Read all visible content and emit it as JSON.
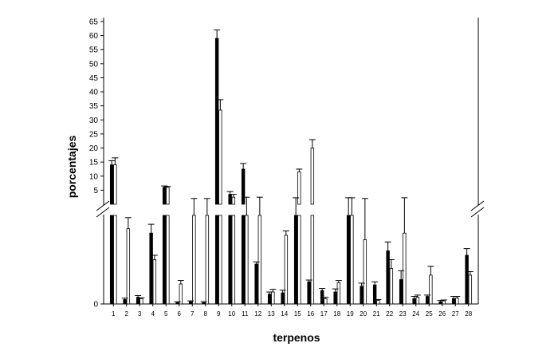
{
  "chart_data": {
    "type": "bar",
    "xlabel": "terpenos",
    "ylabel": "porcentajes",
    "y_ticks_upper": [
      "5",
      "10",
      "15",
      "20",
      "25",
      "30",
      "35",
      "40",
      "45",
      "50",
      "55",
      "60",
      "65"
    ],
    "y_tick_lower": "0",
    "ylim": [
      0,
      65
    ],
    "axis_break": true,
    "grid": false,
    "legend": "none",
    "categories": [
      "1",
      "2",
      "3",
      "4",
      "5",
      "6",
      "7",
      "8",
      "9",
      "10",
      "11",
      "12",
      "13",
      "14",
      "15",
      "16",
      "17",
      "18",
      "19",
      "20",
      "21",
      "22",
      "23",
      "24",
      "25",
      "26",
      "27",
      "28"
    ],
    "series": [
      {
        "color": "#000000",
        "values": [
          14.0,
          0.1,
          0.15,
          1.6,
          6.0,
          0.03,
          0.05,
          0.03,
          59.0,
          3.5,
          12.5,
          0.9,
          0.22,
          0.25,
          2.0,
          0.5,
          0.3,
          0.27,
          2.0,
          0.4,
          0.43,
          1.2,
          0.55,
          0.12,
          0.17,
          0.05,
          0.12,
          1.1
        ],
        "errors": [
          1.5,
          0.03,
          0.04,
          0.2,
          0.5,
          0.02,
          0.02,
          0.02,
          3.0,
          1.0,
          2.0,
          0.05,
          0.05,
          0.06,
          0.3,
          0.04,
          0.05,
          0.07,
          0.3,
          0.07,
          0.07,
          0.2,
          0.2,
          0.05,
          0.03,
          0.03,
          0.05,
          0.15
        ]
      },
      {
        "color": "#ffffff",
        "values": [
          14.0,
          1.7,
          0.12,
          1.0,
          6.0,
          0.45,
          2.0,
          2.0,
          33.5,
          2.5,
          2.0,
          2.0,
          0.27,
          1.55,
          11.5,
          20.0,
          0.12,
          0.48,
          2.0,
          1.45,
          0.08,
          0.8,
          1.6,
          0.15,
          0.65,
          0.07,
          0.13,
          0.65
        ],
        "errors": [
          2.5,
          0.25,
          0.02,
          0.1,
          0.3,
          0.08,
          0.05,
          0.05,
          3.7,
          1.0,
          0.5,
          0.5,
          0.06,
          0.1,
          1.0,
          3.0,
          0.03,
          0.05,
          0.3,
          0.6,
          0.02,
          0.2,
          0.7,
          0.05,
          0.2,
          0.02,
          0.04,
          0.08
        ]
      }
    ]
  }
}
